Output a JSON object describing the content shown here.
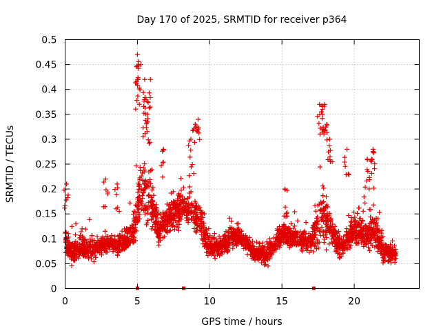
{
  "chart_data": {
    "type": "scatter",
    "title": "Day 170 of 2025, SRMTID for receiver p364",
    "xlabel": "GPS time / hours",
    "ylabel": "SRMTID / TECUs",
    "xlim": [
      0,
      24.5
    ],
    "ylim": [
      0,
      0.5
    ],
    "xticks": [
      0,
      5,
      10,
      15,
      20
    ],
    "xtick_labels": [
      "0",
      "5",
      "10",
      "15",
      "20"
    ],
    "yticks": [
      0,
      0.05,
      0.1,
      0.15,
      0.2,
      0.25,
      0.3,
      0.35,
      0.4,
      0.45,
      0.5
    ],
    "ytick_labels": [
      "0",
      "0.05",
      "0.1",
      "0.15",
      "0.2",
      "0.25",
      "0.3",
      "0.35",
      "0.4",
      "0.45",
      "0.5"
    ],
    "grid": true,
    "marker": "plus",
    "series_color": "#e00000",
    "x_range_of_data": [
      0.0,
      22.9
    ],
    "series": [
      {
        "name": "SRMTID",
        "baseline_profile": {
          "x": [
            0.0,
            0.5,
            1.0,
            2.0,
            3.0,
            4.0,
            4.8,
            5.2,
            5.8,
            6.5,
            7.5,
            8.5,
            9.3,
            10.0,
            11.0,
            12.0,
            13.0,
            14.0,
            15.0,
            16.0,
            17.0,
            17.8,
            18.3,
            19.0,
            20.0,
            21.0,
            21.5,
            22.0,
            22.9
          ],
          "y": [
            0.1,
            0.07,
            0.08,
            0.08,
            0.09,
            0.09,
            0.12,
            0.2,
            0.18,
            0.12,
            0.15,
            0.17,
            0.14,
            0.08,
            0.09,
            0.11,
            0.07,
            0.07,
            0.11,
            0.1,
            0.09,
            0.15,
            0.12,
            0.08,
            0.12,
            0.11,
            0.12,
            0.07,
            0.07
          ],
          "spread": [
            0.03,
            0.03,
            0.03,
            0.03,
            0.03,
            0.03,
            0.05,
            0.09,
            0.07,
            0.04,
            0.04,
            0.05,
            0.05,
            0.03,
            0.03,
            0.03,
            0.02,
            0.03,
            0.03,
            0.03,
            0.03,
            0.09,
            0.05,
            0.03,
            0.04,
            0.04,
            0.05,
            0.03,
            0.02
          ]
        },
        "peaks": [
          {
            "x": 0.1,
            "y": 0.21
          },
          {
            "x": 2.8,
            "y": 0.22
          },
          {
            "x": 3.6,
            "y": 0.21
          },
          {
            "x": 5.0,
            "y": 0.47
          },
          {
            "x": 5.1,
            "y": 0.45
          },
          {
            "x": 5.05,
            "y": 0.42
          },
          {
            "x": 5.5,
            "y": 0.42
          },
          {
            "x": 5.9,
            "y": 0.42
          },
          {
            "x": 5.6,
            "y": 0.38
          },
          {
            "x": 5.7,
            "y": 0.35
          },
          {
            "x": 6.8,
            "y": 0.28
          },
          {
            "x": 8.7,
            "y": 0.3
          },
          {
            "x": 9.0,
            "y": 0.33
          },
          {
            "x": 9.2,
            "y": 0.34
          },
          {
            "x": 15.2,
            "y": 0.2
          },
          {
            "x": 17.6,
            "y": 0.37
          },
          {
            "x": 17.8,
            "y": 0.36
          },
          {
            "x": 17.95,
            "y": 0.37
          },
          {
            "x": 18.1,
            "y": 0.33
          },
          {
            "x": 18.3,
            "y": 0.3
          },
          {
            "x": 19.5,
            "y": 0.28
          },
          {
            "x": 20.9,
            "y": 0.26
          },
          {
            "x": 21.3,
            "y": 0.28
          },
          {
            "x": 21.2,
            "y": 0.26
          }
        ]
      }
    ],
    "axis_markers_x": [
      5.0,
      8.2,
      17.2
    ]
  }
}
